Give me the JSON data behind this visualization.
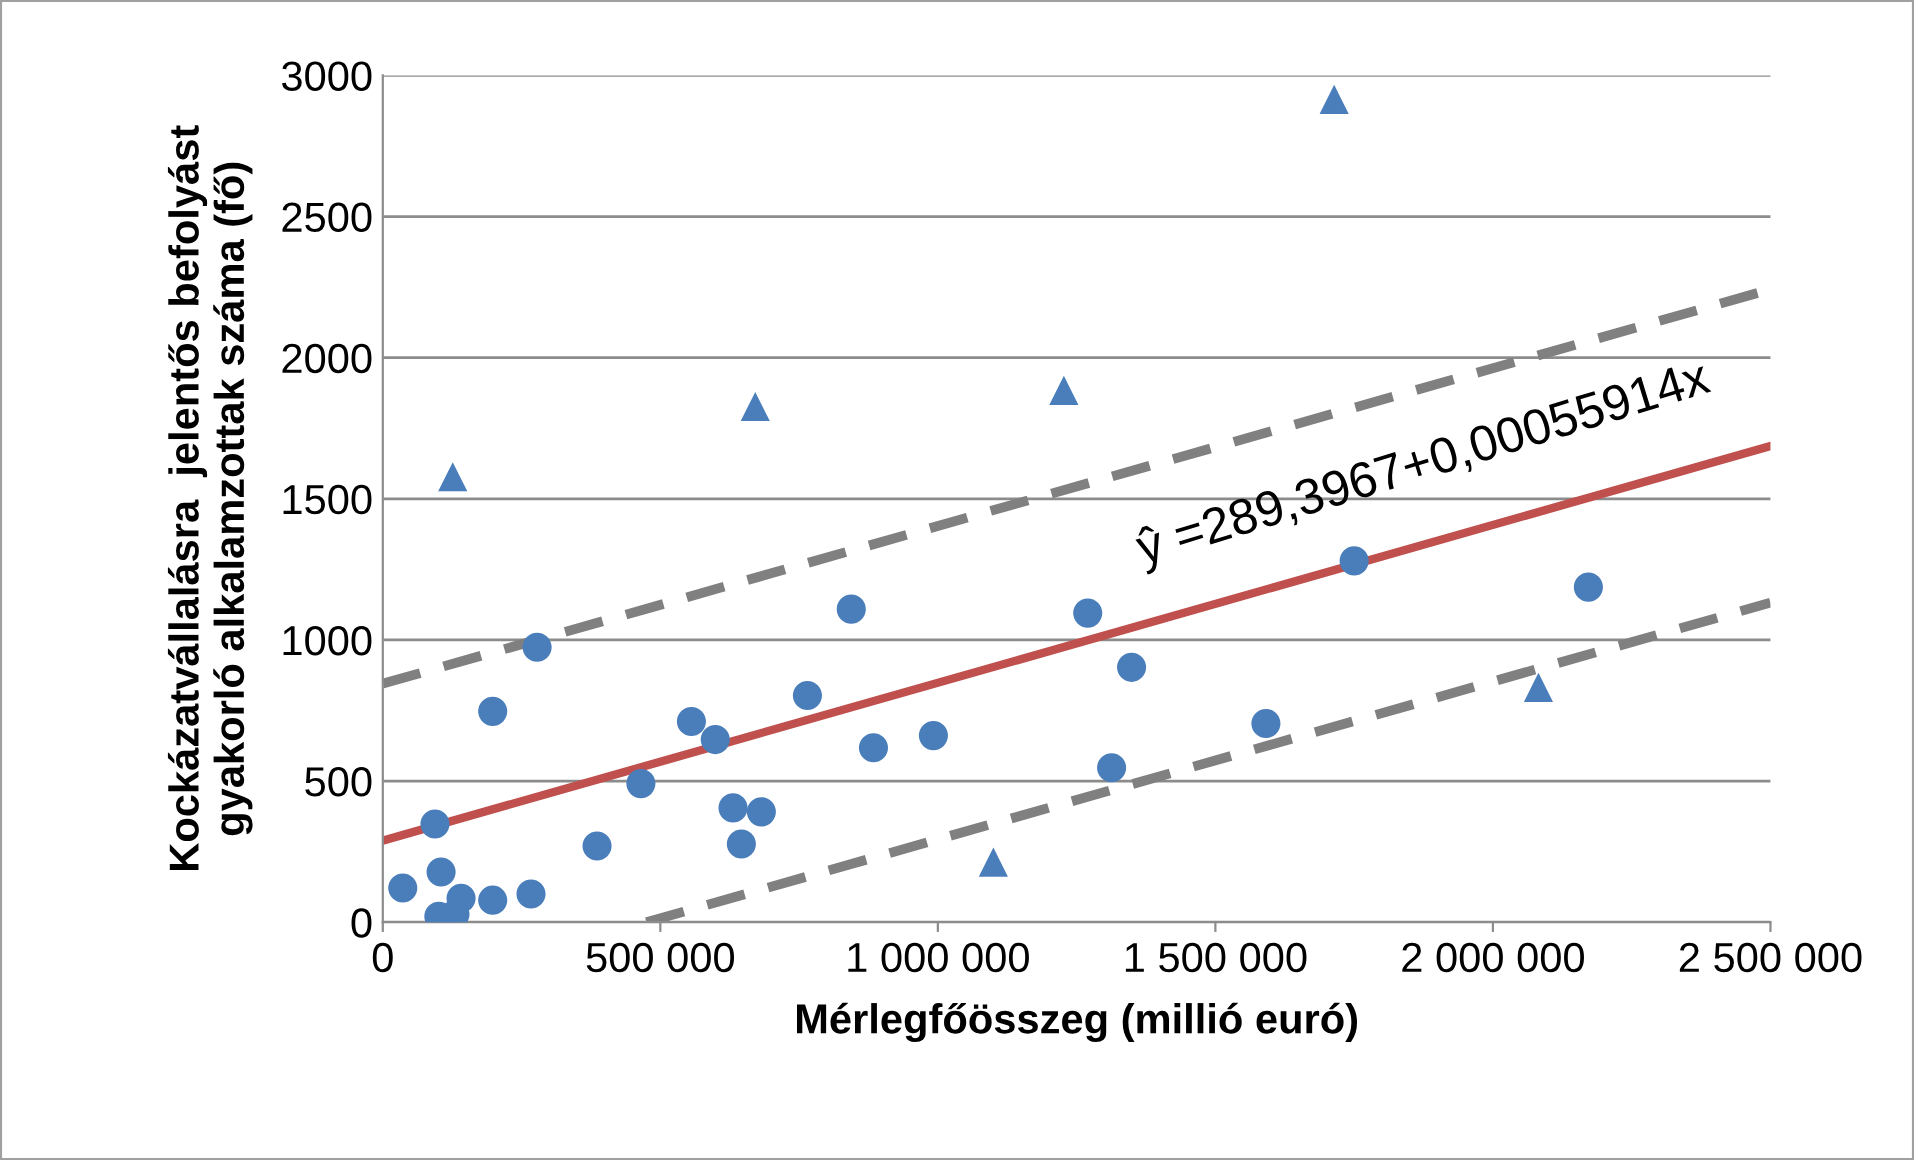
{
  "chart_data": {
    "type": "scatter",
    "xlabel": "Mérlegfőösszeg (millió euró)",
    "ylabel": "Kockázatvállalásra  jelentős befolyást\ngyakorló alkalamzottak száma (fő)",
    "xlim": [
      0,
      2500000
    ],
    "ylim": [
      0,
      3000
    ],
    "xticks": [
      {
        "value": 0,
        "label": "0"
      },
      {
        "value": 500000,
        "label": "500 000"
      },
      {
        "value": 1000000,
        "label": "1 000 000"
      },
      {
        "value": 1500000,
        "label": "1 500 000"
      },
      {
        "value": 2000000,
        "label": "2 000 000"
      },
      {
        "value": 2500000,
        "label": "2 500 000"
      }
    ],
    "yticks": [
      0,
      500,
      1000,
      1500,
      2000,
      2500,
      3000
    ],
    "grid": "y",
    "annotations": [
      "ŷ =289,3967+0,00055914x"
    ],
    "series": [
      {
        "marker": "circle",
        "color": "#4a7ebb",
        "x": [
          36000,
          94000,
          105000,
          101000,
          130000,
          141000,
          198000,
          198000,
          267000,
          278000,
          386000,
          465000,
          556000,
          599000,
          631000,
          646000,
          682000,
          765000,
          844000,
          884000,
          992000,
          1270000,
          1313000,
          1349000,
          1591000,
          1750000,
          2172000
        ],
        "values": [
          121,
          348,
          178,
          21,
          28,
          85,
          78,
          747,
          100,
          974,
          270,
          491,
          711,
          647,
          405,
          277,
          391,
          803,
          1109,
          618,
          661,
          1095,
          547,
          903,
          704,
          1280,
          1187
        ]
      },
      {
        "marker": "triangle",
        "color": "#4a7ebb",
        "x": [
          126000,
          671000,
          1227000,
          1714000,
          1100000,
          2082000
        ],
        "values": [
          1578,
          1827,
          1884,
          2915,
          213,
          832
        ]
      },
      {
        "type": "line",
        "line_style": "solid",
        "marker": "none",
        "color": "#c0504d",
        "x": [
          0,
          2500000
        ],
        "values": [
          289,
          1687
        ]
      },
      {
        "type": "line",
        "line_style": "dashed",
        "marker": "none",
        "color": "#808080",
        "x": [
          0,
          2500000
        ],
        "values": [
          845,
          2242
        ]
      },
      {
        "type": "line",
        "line_style": "dashed",
        "marker": "none",
        "color": "#808080",
        "x": [
          475000,
          2500000
        ],
        "values": [
          0,
          1132
        ]
      }
    ]
  }
}
